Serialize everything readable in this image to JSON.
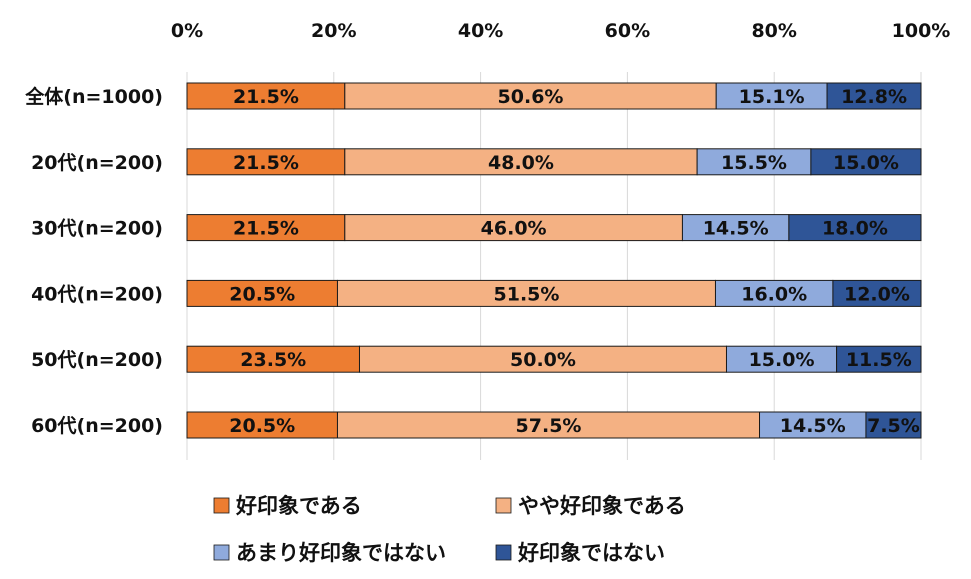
{
  "chart_data": {
    "type": "bar",
    "orientation": "horizontal",
    "stacked": true,
    "title": "",
    "xlabel": "",
    "ylabel": "",
    "xlim": [
      0,
      100
    ],
    "x_ticks": [
      "0%",
      "20%",
      "40%",
      "60%",
      "80%",
      "100%"
    ],
    "x_axis_position": "top",
    "grid": true,
    "legend_position": "bottom",
    "categories": [
      "全体(n=1000)",
      "20代(n=200)",
      "30代(n=200)",
      "40代(n=200)",
      "50代(n=200)",
      "60代(n=200)"
    ],
    "series": [
      {
        "name": "好印象である",
        "color": "#ED7D31",
        "values": [
          21.5,
          21.5,
          21.5,
          20.5,
          23.5,
          20.5
        ]
      },
      {
        "name": "やや好印象である",
        "color": "#F4B183",
        "values": [
          50.6,
          48.0,
          46.0,
          51.5,
          50.0,
          57.5
        ]
      },
      {
        "name": "あまり好印象ではない",
        "color": "#8FAADC",
        "values": [
          15.1,
          15.5,
          14.5,
          16.0,
          15.0,
          14.5
        ]
      },
      {
        "name": "好印象ではない",
        "color": "#2F5597",
        "values": [
          12.8,
          15.0,
          18.0,
          12.0,
          11.5,
          7.5
        ]
      }
    ]
  }
}
